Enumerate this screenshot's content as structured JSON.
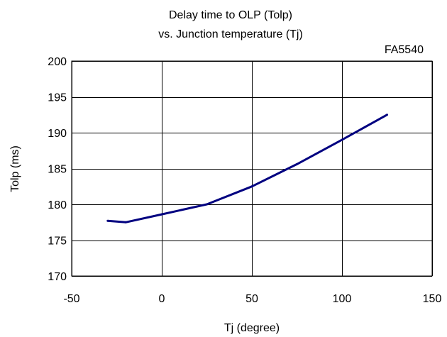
{
  "chart_data": {
    "type": "line",
    "title": "Delay time to OLP (Tolp)",
    "subtitle": "vs. Junction temperature (Tj)",
    "annotation": "FA5540",
    "xlabel": "Tj (degree)",
    "ylabel": "Tolp (ms)",
    "xlim": [
      -50,
      150
    ],
    "ylim": [
      170,
      200
    ],
    "xticks": [
      -50,
      0,
      50,
      100,
      150
    ],
    "yticks": [
      170,
      175,
      180,
      185,
      190,
      195,
      200
    ],
    "grid": true,
    "legend": "none",
    "series": [
      {
        "color": "#000080",
        "x": [
          -30,
          -20,
          0,
          25,
          50,
          75,
          100,
          125
        ],
        "y": [
          177.7,
          177.5,
          178.6,
          180.0,
          182.5,
          185.6,
          189.0,
          192.5
        ]
      }
    ]
  }
}
